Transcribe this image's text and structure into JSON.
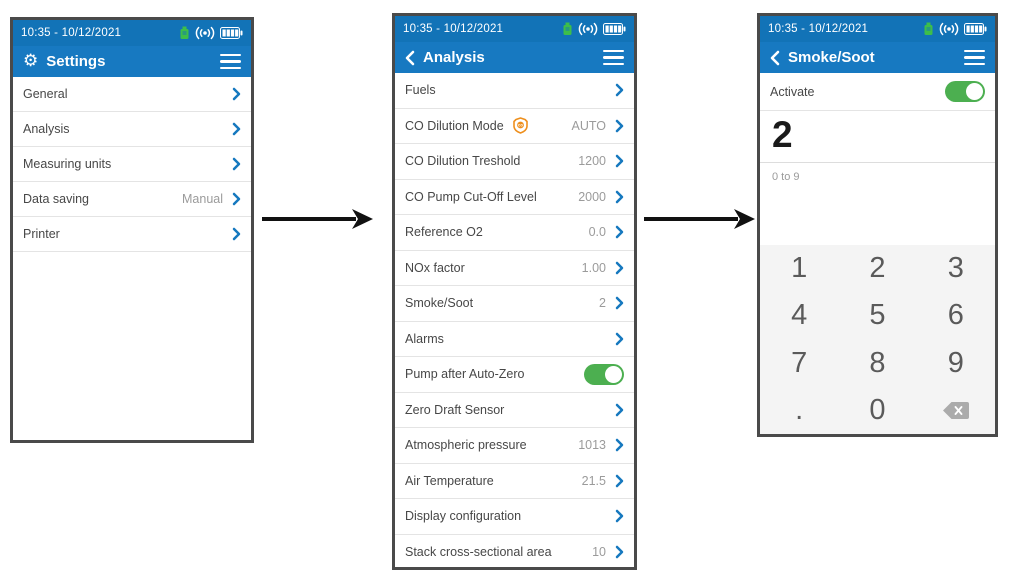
{
  "status_bar": {
    "datetime": "10:35 - 10/12/2021",
    "icons": [
      "probe-icon",
      "wireless-icon",
      "battery-icon"
    ]
  },
  "colors": {
    "status_blue": "#1273B7",
    "header_blue": "#1779C1",
    "accent_blue": "#1678BF",
    "toggle_green": "#4CAF50",
    "label_gray": "#474747",
    "value_gray": "#9B9B9B",
    "co_shield_orange": "#EE8F1D",
    "keypad_bg": "#F4F4F4"
  },
  "screens": [
    {
      "id": "settings",
      "title": "Settings",
      "header_icon": "gear-icon",
      "items": [
        {
          "label": "General",
          "chevron": true
        },
        {
          "label": "Analysis",
          "chevron": true
        },
        {
          "label": "Measuring units",
          "chevron": true
        },
        {
          "label": "Data saving",
          "value": "Manual",
          "chevron": true
        },
        {
          "label": "Printer",
          "chevron": true
        }
      ]
    },
    {
      "id": "analysis",
      "title": "Analysis",
      "back": true,
      "items": [
        {
          "label": "Fuels",
          "chevron": true
        },
        {
          "label": "CO Dilution Mode",
          "icon": "co-shield-icon",
          "value": "AUTO",
          "chevron": true
        },
        {
          "label": "CO Dilution Treshold",
          "value": "1200",
          "chevron": true
        },
        {
          "label": "CO Pump Cut-Off Level",
          "value": "2000",
          "chevron": true
        },
        {
          "label": "Reference O2",
          "value": "0.0",
          "chevron": true
        },
        {
          "label": "NOx factor",
          "value": "1.00",
          "chevron": true
        },
        {
          "label": "Smoke/Soot",
          "value": "2",
          "chevron": true
        },
        {
          "label": "Alarms",
          "chevron": true
        },
        {
          "label": "Pump after Auto-Zero",
          "toggle": true,
          "toggle_on": true
        },
        {
          "label": "Zero Draft Sensor",
          "chevron": true
        },
        {
          "label": "Atmospheric pressure",
          "value": "1013",
          "chevron": true
        },
        {
          "label": "Air Temperature",
          "value": "21.5",
          "chevron": true
        },
        {
          "label": "Display configuration",
          "chevron": true
        },
        {
          "label": "Stack cross-sectional area",
          "value": "10",
          "chevron": true
        }
      ]
    },
    {
      "id": "smoke-soot",
      "title": "Smoke/Soot",
      "back": true,
      "activate_label": "Activate",
      "activate_on": true,
      "current_value": "2",
      "range_hint": "0 to 9",
      "keypad": [
        [
          "1",
          "2",
          "3"
        ],
        [
          "4",
          "5",
          "6"
        ],
        [
          "7",
          "8",
          "9"
        ],
        [
          ".",
          "0",
          "backspace"
        ]
      ]
    }
  ]
}
